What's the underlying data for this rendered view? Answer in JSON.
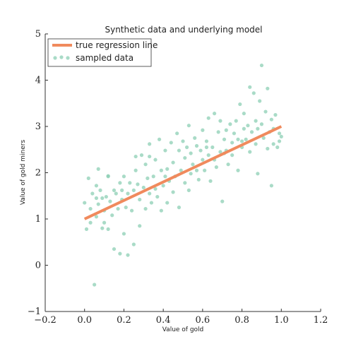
{
  "colors": {
    "line": "#f08a5d",
    "points": "#8ccfb4",
    "axis": "#333333"
  },
  "chart_data": {
    "type": "scatter",
    "title": "Synthetic data and underlying model",
    "xlabel": "Value of gold",
    "ylabel": "Value of gold miners",
    "xlim": [
      -0.2,
      1.2
    ],
    "ylim": [
      -1,
      5
    ],
    "xticks": [
      "−0.2",
      "0.0",
      "0.2",
      "0.4",
      "0.6",
      "0.8",
      "1.0",
      "1.2"
    ],
    "yticks": [
      "−1",
      "0",
      "1",
      "2",
      "3",
      "4",
      "5"
    ],
    "grid": false,
    "legend_position": "top-left",
    "legend": [
      "true regression line",
      "sampled data"
    ],
    "line": {
      "name": "true regression line",
      "x": [
        0.0,
        1.0
      ],
      "y": [
        1.0,
        3.0
      ]
    },
    "points": {
      "name": "sampled data",
      "x": [
        0.0,
        0.01,
        0.02,
        0.03,
        0.03,
        0.04,
        0.05,
        0.06,
        0.06,
        0.07,
        0.07,
        0.08,
        0.09,
        0.09,
        0.1,
        0.1,
        0.11,
        0.12,
        0.12,
        0.13,
        0.14,
        0.15,
        0.15,
        0.16,
        0.17,
        0.18,
        0.18,
        0.19,
        0.2,
        0.2,
        0.21,
        0.22,
        0.22,
        0.23,
        0.24,
        0.25,
        0.25,
        0.26,
        0.27,
        0.28,
        0.28,
        0.29,
        0.3,
        0.31,
        0.31,
        0.32,
        0.33,
        0.33,
        0.34,
        0.35,
        0.36,
        0.36,
        0.37,
        0.38,
        0.39,
        0.39,
        0.4,
        0.41,
        0.42,
        0.42,
        0.43,
        0.44,
        0.45,
        0.45,
        0.46,
        0.47,
        0.48,
        0.48,
        0.49,
        0.5,
        0.51,
        0.51,
        0.52,
        0.53,
        0.54,
        0.54,
        0.55,
        0.56,
        0.57,
        0.57,
        0.58,
        0.59,
        0.6,
        0.6,
        0.61,
        0.62,
        0.63,
        0.63,
        0.64,
        0.65,
        0.66,
        0.66,
        0.67,
        0.68,
        0.69,
        0.69,
        0.7,
        0.71,
        0.72,
        0.72,
        0.73,
        0.74,
        0.75,
        0.75,
        0.76,
        0.77,
        0.78,
        0.78,
        0.79,
        0.8,
        0.81,
        0.81,
        0.82,
        0.83,
        0.84,
        0.84,
        0.85,
        0.86,
        0.87,
        0.87,
        0.88,
        0.89,
        0.9,
        0.9,
        0.91,
        0.92,
        0.93,
        0.93,
        0.94,
        0.95,
        0.96,
        0.96,
        0.97,
        0.98,
        0.99,
        0.99,
        1.0,
        0.06,
        0.12,
        0.19,
        0.26,
        0.33,
        0.41,
        0.53,
        0.62,
        0.71,
        0.8,
        0.88,
        0.95
      ],
      "y": [
        1.35,
        0.78,
        1.88,
        1.22,
        0.92,
        1.55,
        -0.42,
        1.05,
        1.72,
        1.32,
        2.08,
        1.62,
        1.45,
        0.8,
        1.18,
        0.92,
        1.48,
        0.78,
        1.93,
        1.38,
        1.08,
        1.62,
        0.35,
        1.55,
        1.22,
        1.78,
        0.25,
        1.42,
        0.68,
        1.92,
        1.25,
        1.55,
        0.22,
        1.78,
        1.18,
        0.45,
        1.62,
        2.35,
        1.75,
        1.42,
        0.85,
        2.38,
        1.68,
        1.22,
        2.18,
        1.88,
        1.55,
        2.62,
        1.35,
        1.92,
        1.65,
        2.28,
        1.48,
        2.72,
        1.18,
        2.05,
        1.72,
        2.48,
        1.35,
        2.08,
        1.82,
        2.65,
        1.58,
        2.22,
        1.92,
        2.85,
        1.25,
        2.48,
        2.05,
        2.68,
        1.78,
        2.32,
        2.55,
        3.02,
        1.98,
        2.42,
        2.18,
        2.75,
        2.05,
        2.58,
        1.85,
        2.48,
        2.28,
        2.92,
        2.05,
        2.68,
        2.38,
        3.18,
        1.82,
        2.55,
        2.28,
        3.28,
        2.12,
        2.88,
        2.45,
        3.12,
        1.38,
        2.72,
        2.48,
        2.92,
        2.18,
        3.05,
        2.38,
        2.65,
        2.85,
        3.12,
        2.05,
        2.72,
        3.48,
        2.55,
        2.95,
        3.28,
        2.72,
        3.02,
        2.45,
        3.85,
        2.88,
        3.72,
        2.62,
        3.12,
        2.95,
        3.55,
        4.32,
        3.05,
        2.75,
        3.32,
        2.52,
        3.82,
        2.88,
        3.15,
        2.62,
        2.95,
        3.25,
        2.55,
        2.85,
        2.68,
        2.78,
        1.45,
        1.92,
        1.62,
        2.05,
        2.35,
        1.92,
        1.62,
        2.55,
        2.42,
        2.68,
        1.98,
        1.72
      ]
    }
  }
}
